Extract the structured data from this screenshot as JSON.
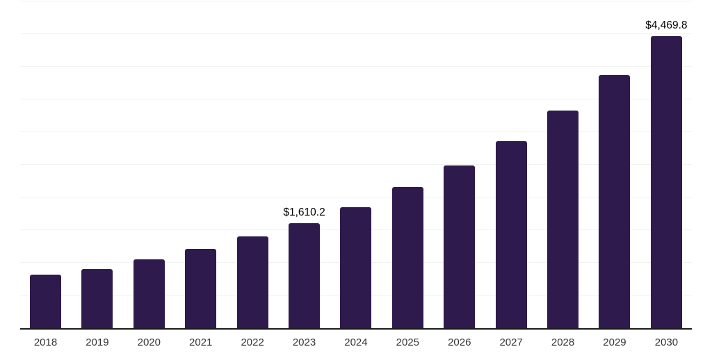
{
  "chart_data": {
    "type": "bar",
    "title": "",
    "xlabel": "",
    "ylabel": "",
    "categories": [
      "2018",
      "2019",
      "2020",
      "2021",
      "2022",
      "2023",
      "2024",
      "2025",
      "2026",
      "2027",
      "2028",
      "2029",
      "2030"
    ],
    "values": [
      820,
      905,
      1055,
      1215,
      1400,
      1610.2,
      1850,
      2155,
      2490,
      2865,
      3330,
      3870,
      4469.8
    ],
    "value_labels": [
      "",
      "",
      "",
      "",
      "",
      "$1,610.2",
      "",
      "",
      "",
      "",
      "",
      "",
      "$4,469.8"
    ],
    "labeled_points": [
      {
        "category": "2023",
        "label": "$1,610.2"
      },
      {
        "category": "2030",
        "label": "$4,469.8"
      }
    ],
    "ylim": [
      0,
      5000
    ],
    "gridline_step": 500,
    "grid": true,
    "legend_position": "none",
    "colors": {
      "bar": "#2F1A4D",
      "gridline": "#F2F2F2",
      "axis": "#1A1A1A",
      "value_label_text": "#000000",
      "tick_text": "#333333",
      "background": "#FFFFFF"
    }
  }
}
